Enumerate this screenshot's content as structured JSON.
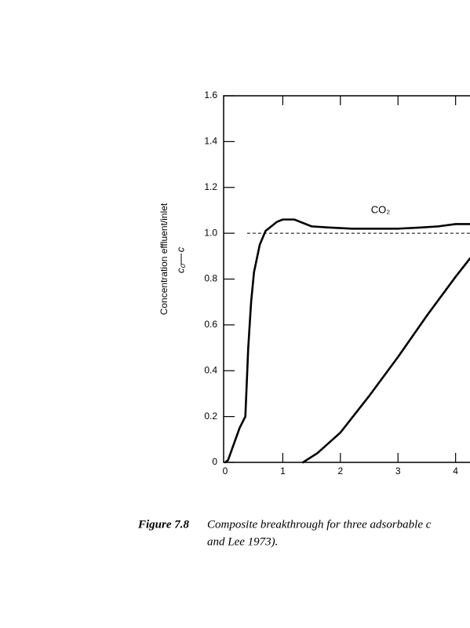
{
  "chart_data": {
    "type": "line",
    "ylabel": "Concentration effluent/inlet",
    "ylabel_numerator": "c",
    "ylabel_denominator": "c₀",
    "annotation": "CO₂",
    "caption_label": "Figure 7.8",
    "caption_lines": [
      "Composite breakthrough for three adsorbable c",
      "and Lee 1973)."
    ],
    "xlim": [
      0,
      4.25
    ],
    "ylim": [
      0,
      1.6
    ],
    "xticks": [
      0,
      1,
      2,
      3,
      4
    ],
    "yticks": [
      0,
      0.2,
      0.4,
      0.6,
      0.8,
      {
        "value": 1,
        "label": "1.0"
      },
      1.2,
      1.4,
      1.6
    ],
    "reference": {
      "value": 1,
      "from": 0.38
    },
    "series": [
      {
        "color": "#000000",
        "x": [
          0,
          0.05,
          0.15,
          0.25,
          0.35,
          0.4,
          0.45,
          0.5,
          0.6,
          0.7,
          0.8,
          0.9,
          1.0,
          1.1,
          1.2,
          1.3,
          1.5,
          1.8,
          2.2,
          2.6,
          3.0,
          3.4,
          3.7,
          4.0,
          4.25
        ],
        "values": [
          0,
          0.01,
          0.08,
          0.15,
          0.2,
          0.5,
          0.7,
          0.83,
          0.95,
          1.01,
          1.03,
          1.05,
          1.06,
          1.06,
          1.06,
          1.05,
          1.03,
          1.025,
          1.02,
          1.02,
          1.02,
          1.025,
          1.03,
          1.04,
          1.04
        ]
      },
      {
        "color": "#000000",
        "x": [
          1.35,
          1.6,
          2.0,
          2.5,
          3.0,
          3.5,
          4.0,
          4.25
        ],
        "values": [
          0,
          0.04,
          0.13,
          0.29,
          0.46,
          0.64,
          0.81,
          0.89
        ]
      }
    ]
  }
}
